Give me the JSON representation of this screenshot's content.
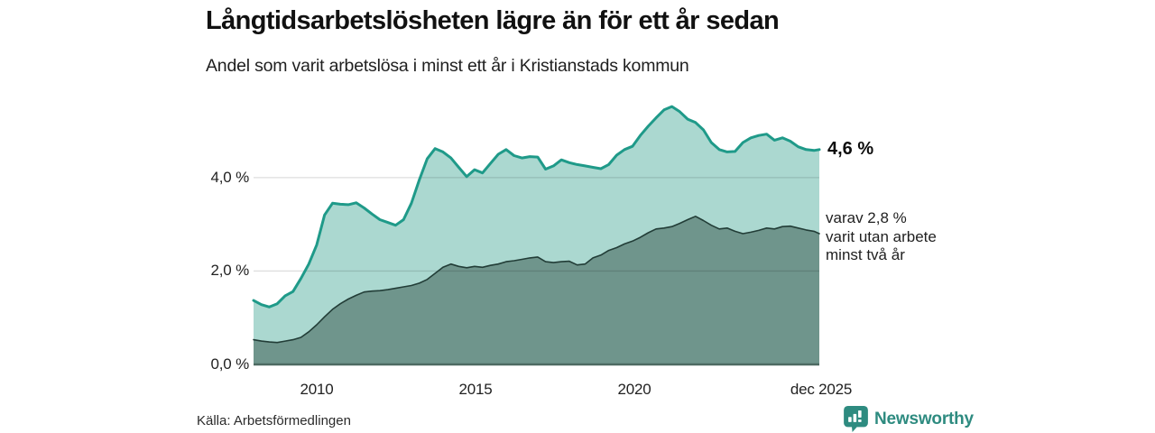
{
  "chart_data": {
    "type": "area",
    "title": "Långtidsarbetslösheten lägre än för ett år sedan",
    "subtitle": "Andel som varit arbetslösa i minst ett år i Kristianstads kommun",
    "legend_position": "none",
    "grid": true,
    "x_axis": {
      "range": [
        2008.0,
        2025.92
      ],
      "ticks": [
        {
          "label": "2010",
          "value": 2010
        },
        {
          "label": "2015",
          "value": 2015
        },
        {
          "label": "2020",
          "value": 2020
        },
        {
          "label": "dec 2025",
          "value": 2025.92
        }
      ]
    },
    "y_axis": {
      "range": [
        0,
        5.6
      ],
      "unit": "%",
      "ticks": [
        {
          "label": "0,0 %",
          "value": 0
        },
        {
          "label": "2,0 %",
          "value": 2
        },
        {
          "label": "4,0 %",
          "value": 4
        }
      ]
    },
    "x": [
      2008.0,
      2008.25,
      2008.5,
      2008.75,
      2009.0,
      2009.25,
      2009.5,
      2009.75,
      2010.0,
      2010.25,
      2010.5,
      2010.75,
      2011.0,
      2011.25,
      2011.5,
      2011.75,
      2012.0,
      2012.25,
      2012.5,
      2012.75,
      2013.0,
      2013.25,
      2013.5,
      2013.75,
      2014.0,
      2014.25,
      2014.5,
      2014.75,
      2015.0,
      2015.25,
      2015.5,
      2015.75,
      2016.0,
      2016.25,
      2016.5,
      2016.75,
      2017.0,
      2017.25,
      2017.5,
      2017.75,
      2018.0,
      2018.25,
      2018.5,
      2018.75,
      2019.0,
      2019.25,
      2019.5,
      2019.75,
      2020.0,
      2020.25,
      2020.5,
      2020.75,
      2021.0,
      2021.25,
      2021.5,
      2021.75,
      2022.0,
      2022.25,
      2022.5,
      2022.75,
      2023.0,
      2023.25,
      2023.5,
      2023.75,
      2024.0,
      2024.25,
      2024.5,
      2024.75,
      2025.0,
      2025.25,
      2025.5,
      2025.75,
      2025.92
    ],
    "series": [
      {
        "name": "Andel arbetslösa minst ett år",
        "end_value": 4.6,
        "stroke": "#1f9a89",
        "fill": "#abd8d0",
        "stroke_width": 3,
        "values": [
          1.37,
          1.28,
          1.23,
          1.3,
          1.47,
          1.56,
          1.84,
          2.15,
          2.56,
          3.2,
          3.45,
          3.43,
          3.42,
          3.46,
          3.35,
          3.22,
          3.1,
          3.04,
          2.98,
          3.1,
          3.45,
          3.95,
          4.4,
          4.62,
          4.55,
          4.42,
          4.22,
          4.02,
          4.17,
          4.1,
          4.3,
          4.5,
          4.6,
          4.47,
          4.42,
          4.45,
          4.44,
          4.18,
          4.25,
          4.38,
          4.32,
          4.28,
          4.25,
          4.22,
          4.19,
          4.28,
          4.48,
          4.6,
          4.67,
          4.9,
          5.1,
          5.28,
          5.45,
          5.52,
          5.41,
          5.25,
          5.18,
          5.02,
          4.75,
          4.6,
          4.55,
          4.56,
          4.75,
          4.85,
          4.9,
          4.93,
          4.8,
          4.85,
          4.78,
          4.66,
          4.6,
          4.58,
          4.6
        ]
      },
      {
        "name": "varav utan arbete minst två år",
        "end_value": 2.8,
        "stroke": "#223d37",
        "fill": "#6f958c",
        "stroke_width": 1.6,
        "values": [
          0.53,
          0.5,
          0.48,
          0.47,
          0.5,
          0.53,
          0.58,
          0.7,
          0.85,
          1.02,
          1.18,
          1.3,
          1.4,
          1.48,
          1.55,
          1.57,
          1.58,
          1.6,
          1.63,
          1.66,
          1.69,
          1.74,
          1.82,
          1.95,
          2.08,
          2.15,
          2.1,
          2.07,
          2.1,
          2.08,
          2.12,
          2.15,
          2.2,
          2.22,
          2.25,
          2.28,
          2.3,
          2.2,
          2.18,
          2.2,
          2.21,
          2.13,
          2.15,
          2.28,
          2.34,
          2.44,
          2.5,
          2.58,
          2.64,
          2.72,
          2.82,
          2.9,
          2.92,
          2.95,
          3.02,
          3.1,
          3.17,
          3.08,
          2.98,
          2.9,
          2.92,
          2.85,
          2.8,
          2.83,
          2.87,
          2.92,
          2.9,
          2.95,
          2.96,
          2.92,
          2.88,
          2.85,
          2.8
        ]
      }
    ],
    "annotations": {
      "end_total": "4,6 %",
      "end_two_year": [
        "varav 2,8 %",
        "varit utan arbete",
        "minst två år"
      ]
    },
    "colors": {
      "baseline": "#4d6a62",
      "gridline": "rgba(0,0,0,0.13)"
    }
  },
  "footer": {
    "source": "Källa: Arbetsförmedlingen",
    "brand": "Newsworthy",
    "brand_color": "#2e8b80"
  }
}
